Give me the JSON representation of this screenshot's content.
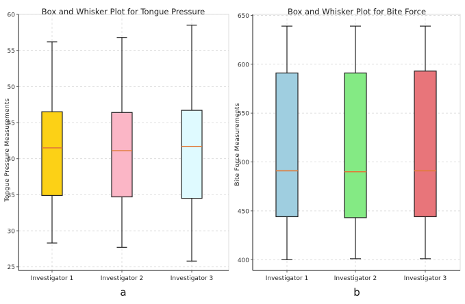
{
  "chart_data": [
    {
      "type": "box",
      "title": "Box and Whisker Plot for Tongue Pressure",
      "xlabel": "",
      "ylabel": "Tongue Pressure Measurements",
      "ylim": [
        24.5,
        60
      ],
      "yticks": [
        25,
        30,
        35,
        40,
        45,
        50,
        55,
        60
      ],
      "grid": true,
      "panel_label": "a",
      "categories": [
        "Investigator 1",
        "Investigator 2",
        "Investigator 3"
      ],
      "boxes": [
        {
          "name": "Investigator 1",
          "min": 28.3,
          "q1": 34.9,
          "median": 41.5,
          "q3": 46.5,
          "max": 56.2,
          "color": "#fcd116"
        },
        {
          "name": "Investigator 2",
          "min": 27.7,
          "q1": 34.7,
          "median": 41.1,
          "q3": 46.4,
          "max": 56.8,
          "color": "#fbb6c6"
        },
        {
          "name": "Investigator 3",
          "min": 25.8,
          "q1": 34.5,
          "median": 41.7,
          "q3": 46.7,
          "max": 58.5,
          "color": "#dffaff"
        }
      ],
      "median_color": "#e07b39"
    },
    {
      "type": "box",
      "title": "Box and Whisker Plot for Bite Force",
      "xlabel": "",
      "ylabel": "Bite Force Measurements",
      "ylim": [
        389,
        651
      ],
      "yticks": [
        400,
        450,
        500,
        550,
        600,
        650
      ],
      "grid": true,
      "panel_label": "b",
      "categories": [
        "Investigator 1",
        "Investigator 2",
        "Investigator 3"
      ],
      "boxes": [
        {
          "name": "Investigator 1",
          "min": 400,
          "q1": 444,
          "median": 491,
          "q3": 591,
          "max": 639,
          "color": "#9fcee0"
        },
        {
          "name": "Investigator 2",
          "min": 401,
          "q1": 443,
          "median": 490,
          "q3": 591,
          "max": 639,
          "color": "#84ea84"
        },
        {
          "name": "Investigator 3",
          "min": 401,
          "q1": 444,
          "median": 491,
          "q3": 593,
          "max": 639,
          "color": "#e8757a"
        }
      ],
      "median_color": "#e07b39"
    }
  ]
}
